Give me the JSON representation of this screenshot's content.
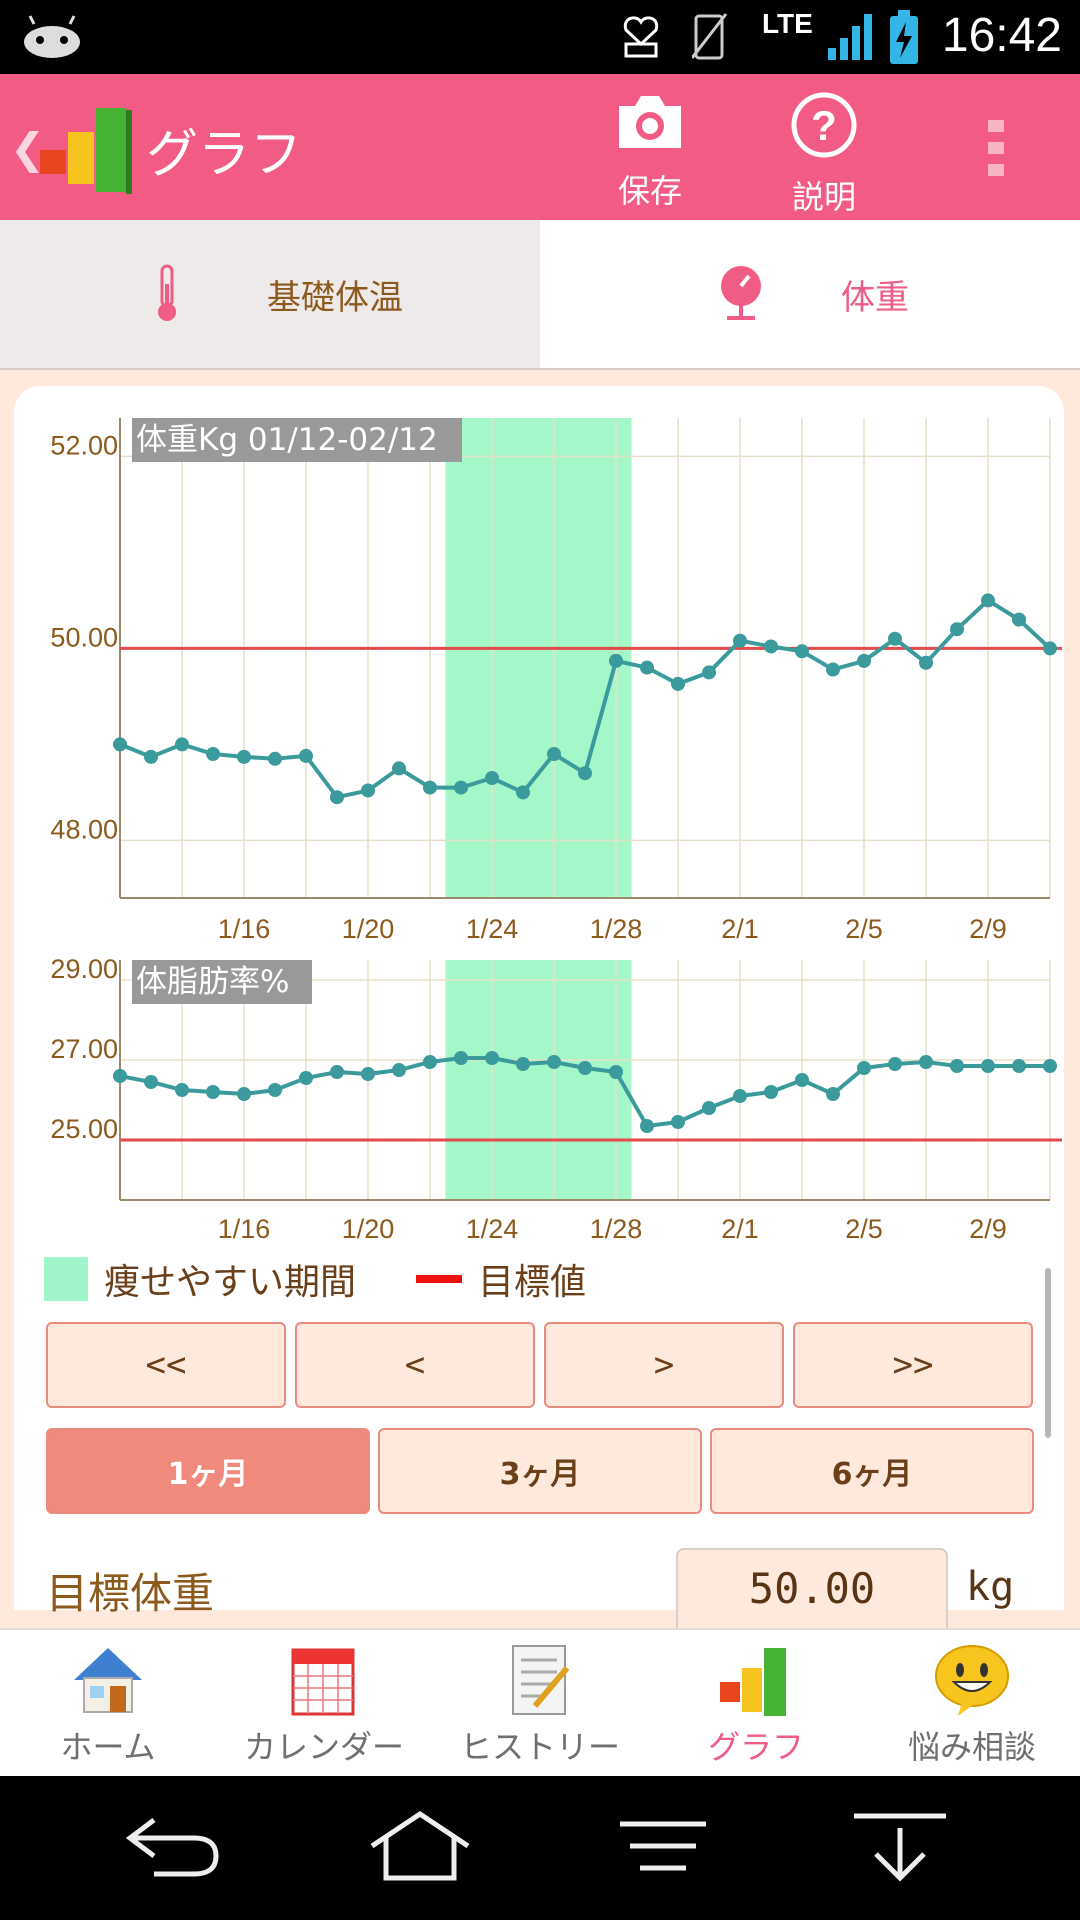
{
  "status_bar": {
    "time": "16:42",
    "network": "LTE"
  },
  "app_bar": {
    "title": "グラフ",
    "actions": [
      {
        "label": "保存",
        "icon": "camera-icon"
      },
      {
        "label": "説明",
        "icon": "help-icon"
      }
    ]
  },
  "tabs": [
    {
      "label": "基礎体温",
      "icon": "thermometer-icon",
      "active": false
    },
    {
      "label": "体重",
      "icon": "scale-icon",
      "active": true
    }
  ],
  "colors": {
    "accent": "#f25c84",
    "line": "#3a9a9c",
    "target": "#e34a4a",
    "period": "#a4f7c8",
    "background": "#ffe9dc"
  },
  "chart_data": [
    {
      "type": "line",
      "title": "体重Kg 01/12-02/12",
      "ylim": [
        47.4,
        52.4
      ],
      "yticks": [
        "52.00",
        "50.00",
        "48.00"
      ],
      "ytick_values": [
        52,
        50,
        48
      ],
      "xticks": [
        "1/16",
        "1/20",
        "1/24",
        "1/28",
        "2/1",
        "2/5",
        "2/9"
      ],
      "xtick_days": [
        4,
        8,
        12,
        16,
        20,
        24,
        28
      ],
      "x_days": [
        0,
        1,
        2,
        3,
        4,
        5,
        6,
        7,
        8,
        9,
        10,
        11,
        12,
        13,
        14,
        15,
        16,
        17,
        18,
        19,
        20,
        21,
        22,
        23,
        24,
        25,
        26,
        27,
        28,
        29,
        30
      ],
      "series": [
        {
          "values": [
            49.0,
            48.87,
            49.0,
            48.9,
            48.87,
            48.85,
            48.88,
            48.45,
            48.52,
            48.75,
            48.55,
            48.55,
            48.65,
            48.5,
            48.9,
            48.7,
            49.87,
            49.8,
            49.63,
            49.75,
            50.08,
            50.02,
            49.97,
            49.78,
            49.87,
            50.1,
            49.85,
            50.2,
            50.5,
            50.3,
            50.0
          ]
        }
      ],
      "target": 50.0,
      "highlight_days": [
        10.5,
        16.5
      ]
    },
    {
      "type": "line",
      "title": "体脂肪率%",
      "ylim": [
        23.5,
        29.5
      ],
      "yticks": [
        "29.00",
        "27.00",
        "25.00"
      ],
      "ytick_values": [
        29,
        27,
        25
      ],
      "xticks": [
        "1/16",
        "1/20",
        "1/24",
        "1/28",
        "2/1",
        "2/5",
        "2/9"
      ],
      "xtick_days": [
        4,
        8,
        12,
        16,
        20,
        24,
        28
      ],
      "x_days": [
        0,
        1,
        2,
        3,
        4,
        5,
        6,
        7,
        8,
        9,
        10,
        11,
        12,
        13,
        14,
        15,
        16,
        17,
        18,
        19,
        20,
        21,
        22,
        23,
        24,
        25,
        26,
        27,
        28,
        29,
        30
      ],
      "series": [
        {
          "values": [
            26.6,
            26.45,
            26.25,
            26.2,
            26.15,
            26.25,
            26.55,
            26.7,
            26.65,
            26.75,
            26.95,
            27.05,
            27.05,
            26.9,
            26.95,
            26.8,
            26.7,
            25.35,
            25.45,
            25.8,
            26.1,
            26.2,
            26.5,
            26.15,
            26.8,
            26.9,
            26.95,
            26.85,
            26.85,
            26.85,
            26.85
          ]
        }
      ],
      "target": 25.0,
      "highlight_days": [
        10.5,
        16.5
      ]
    }
  ],
  "legend": {
    "period_label": "痩せやすい期間",
    "target_label": "目標値"
  },
  "nav_buttons": [
    "<<",
    "<",
    ">",
    ">>"
  ],
  "range_buttons": [
    {
      "label": "1ヶ月",
      "selected": true
    },
    {
      "label": "3ヶ月",
      "selected": false
    },
    {
      "label": "6ヶ月",
      "selected": false
    }
  ],
  "target_weight": {
    "label": "目標体重",
    "value": "50.00",
    "unit": "kg"
  },
  "bottom_nav": [
    {
      "label": "ホーム",
      "icon": "home-icon",
      "active": false
    },
    {
      "label": "カレンダー",
      "icon": "calendar-icon",
      "active": false
    },
    {
      "label": "ヒストリー",
      "icon": "history-icon",
      "active": false
    },
    {
      "label": "グラフ",
      "icon": "chart-icon",
      "active": true
    },
    {
      "label": "悩み相談",
      "icon": "smiley-icon",
      "active": false
    }
  ]
}
